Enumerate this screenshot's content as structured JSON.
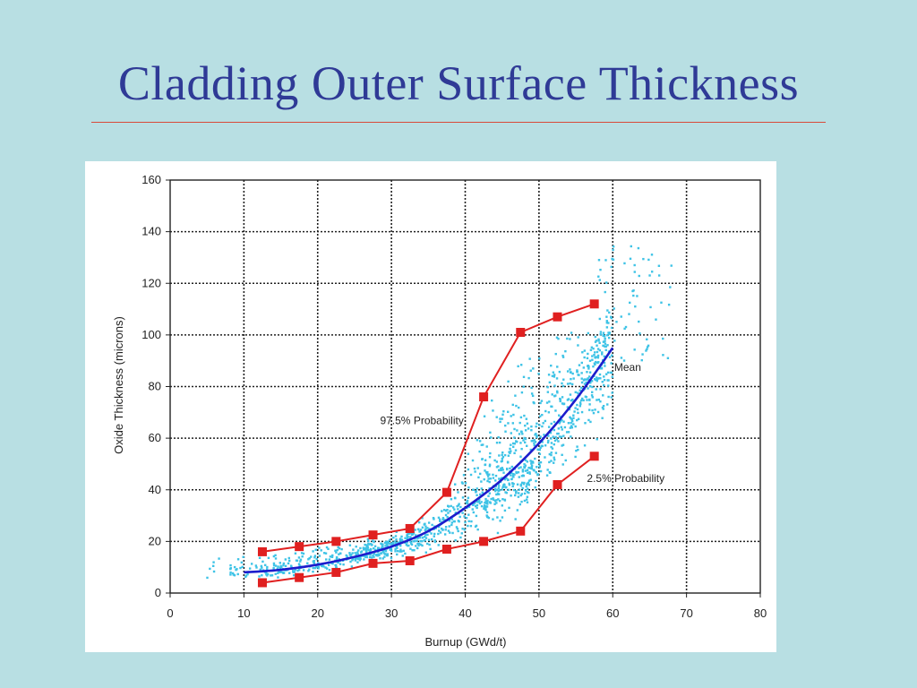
{
  "slide": {
    "title": "Cladding Outer Surface Thickness",
    "background": "#b8dfe3",
    "title_color": "#2f3a96",
    "rule_color": "#d84a3a"
  },
  "chart_data": {
    "type": "scatter",
    "title": "",
    "xlabel": "Burnup (GWd/t)",
    "ylabel": "Oxide Thickness (microns)",
    "xlim": [
      0,
      80
    ],
    "ylim": [
      0,
      160
    ],
    "x_ticks": [
      0,
      10,
      20,
      30,
      40,
      50,
      60,
      70,
      80
    ],
    "y_ticks": [
      0,
      20,
      40,
      60,
      80,
      100,
      120,
      140,
      160
    ],
    "grid": true,
    "scatter_color": "#3ec3e6",
    "series": [
      {
        "name": "97.5% Probability",
        "color": "#e02020",
        "marker": "square",
        "x": [
          12.5,
          17.5,
          22.5,
          27.5,
          32.5,
          37.5,
          42.5,
          47.5,
          52.5,
          57.5
        ],
        "y": [
          16,
          18,
          20,
          22.5,
          25,
          39,
          76,
          101,
          107,
          112
        ]
      },
      {
        "name": "2.5% Probability",
        "color": "#e02020",
        "marker": "square",
        "x": [
          12.5,
          17.5,
          22.5,
          27.5,
          32.5,
          37.5,
          42.5,
          47.5,
          52.5,
          57.5
        ],
        "y": [
          4,
          6,
          8,
          11.5,
          12.5,
          17,
          20,
          24,
          42,
          53
        ]
      },
      {
        "name": "Mean",
        "color": "#1c1ccc",
        "marker": "none",
        "x": [
          10,
          15,
          20,
          25,
          30,
          35,
          40,
          45,
          50,
          55,
          60
        ],
        "y": [
          8,
          9,
          11,
          14,
          18,
          24,
          33,
          44,
          58,
          75,
          95
        ]
      }
    ]
  }
}
